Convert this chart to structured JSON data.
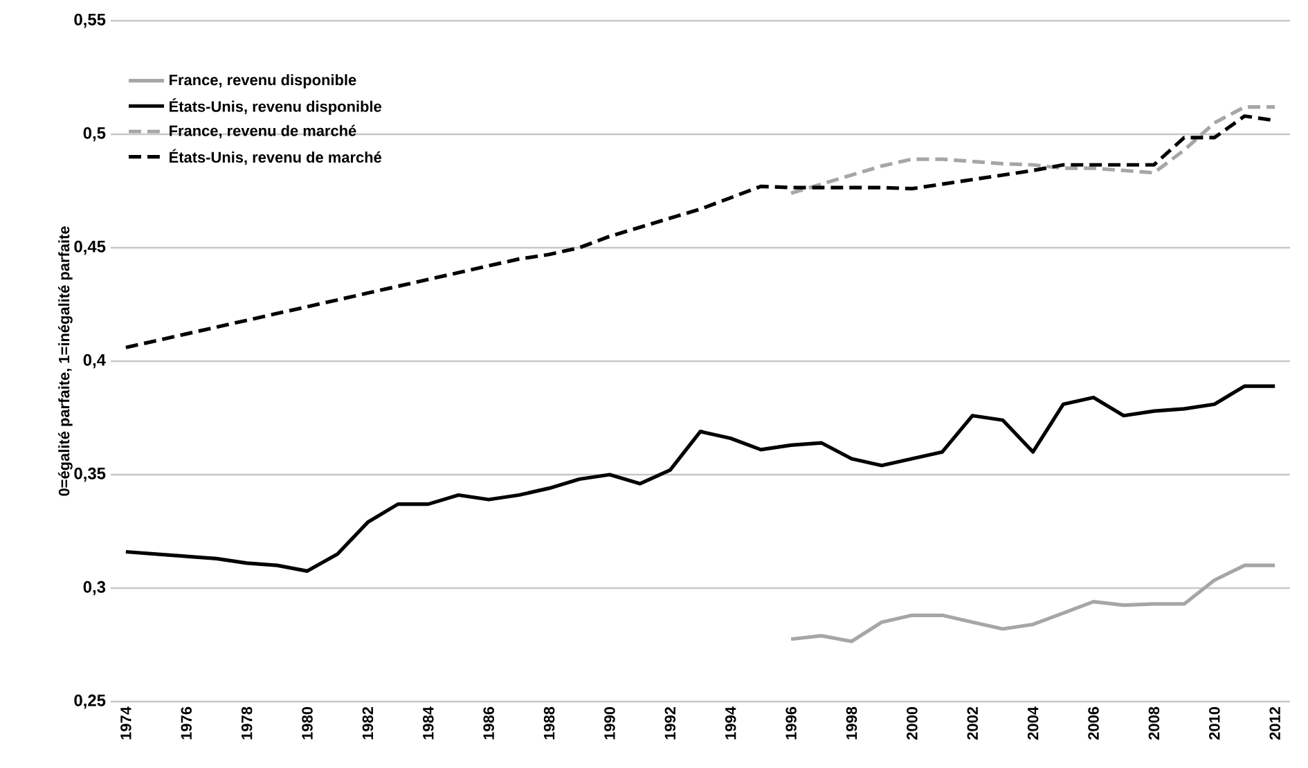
{
  "chart_data": {
    "type": "line",
    "ylabel": "0=égalité parfaite, 1=inégalité parfaite",
    "x": [
      1974,
      1975,
      1976,
      1977,
      1978,
      1979,
      1980,
      1981,
      1982,
      1983,
      1984,
      1985,
      1986,
      1987,
      1988,
      1989,
      1990,
      1991,
      1992,
      1993,
      1994,
      1995,
      1996,
      1997,
      1998,
      1999,
      2000,
      2001,
      2002,
      2003,
      2004,
      2005,
      2006,
      2007,
      2008,
      2009,
      2010,
      2011,
      2012
    ],
    "series": [
      {
        "name": "France, revenu disponible",
        "color": "#a6a6a6",
        "line_style": "solid",
        "values": [
          null,
          null,
          null,
          null,
          null,
          null,
          null,
          null,
          null,
          null,
          null,
          null,
          null,
          null,
          null,
          null,
          null,
          null,
          null,
          null,
          null,
          null,
          0.2775,
          0.279,
          0.2765,
          0.285,
          0.288,
          0.288,
          0.285,
          0.282,
          0.284,
          0.289,
          0.294,
          0.2925,
          0.293,
          0.293,
          0.3035,
          0.31,
          0.31
        ]
      },
      {
        "name": "États-Unis, revenu disponible",
        "color": "#000000",
        "line_style": "solid",
        "values": [
          0.316,
          0.315,
          0.314,
          0.313,
          0.311,
          0.31,
          0.3075,
          0.315,
          0.329,
          0.337,
          0.337,
          0.341,
          0.339,
          0.341,
          0.344,
          0.348,
          0.35,
          0.346,
          0.352,
          0.369,
          0.366,
          0.361,
          0.363,
          0.364,
          0.357,
          0.354,
          0.357,
          0.36,
          0.376,
          0.374,
          0.36,
          0.381,
          0.384,
          0.376,
          0.378,
          0.379,
          0.381,
          0.389,
          0.389
        ]
      },
      {
        "name": "France, revenu de marché",
        "color": "#a6a6a6",
        "line_style": "dashed",
        "values": [
          null,
          null,
          null,
          null,
          null,
          null,
          null,
          null,
          null,
          null,
          null,
          null,
          null,
          null,
          null,
          null,
          null,
          null,
          null,
          null,
          null,
          null,
          0.474,
          0.478,
          0.482,
          0.486,
          0.489,
          0.489,
          0.488,
          0.487,
          0.4865,
          0.485,
          0.485,
          0.484,
          0.483,
          0.493,
          0.505,
          0.512,
          0.512
        ]
      },
      {
        "name": "États-Unis, revenu de marché",
        "color": "#000000",
        "line_style": "dashed",
        "values": [
          0.406,
          0.409,
          0.412,
          0.415,
          0.418,
          0.421,
          0.424,
          0.427,
          0.43,
          0.433,
          0.436,
          0.439,
          0.442,
          0.445,
          0.447,
          0.45,
          0.455,
          0.459,
          0.463,
          0.467,
          0.472,
          0.477,
          0.4765,
          0.4765,
          0.4765,
          0.4765,
          0.476,
          0.478,
          0.48,
          0.482,
          0.484,
          0.4865,
          0.4865,
          0.4865,
          0.4865,
          0.4985,
          0.4985,
          0.508,
          0.506
        ]
      }
    ],
    "xlim": [
      1973.5,
      2012.5
    ],
    "xticks": [
      1974,
      1976,
      1978,
      1980,
      1982,
      1984,
      1986,
      1988,
      1990,
      1992,
      1994,
      1996,
      1998,
      2000,
      2002,
      2004,
      2006,
      2008,
      2010,
      2012
    ],
    "ylim": [
      0.25,
      0.55
    ],
    "yticks": [
      {
        "value": 0.25,
        "label": "0,25"
      },
      {
        "value": 0.3,
        "label": "0,3"
      },
      {
        "value": 0.35,
        "label": "0,35"
      },
      {
        "value": 0.4,
        "label": "0,4"
      },
      {
        "value": 0.45,
        "label": "0,45"
      },
      {
        "value": 0.5,
        "label": "0,5"
      },
      {
        "value": 0.55,
        "label": "0,55"
      }
    ],
    "grid": "y",
    "legend": "top left",
    "marker": "none"
  }
}
